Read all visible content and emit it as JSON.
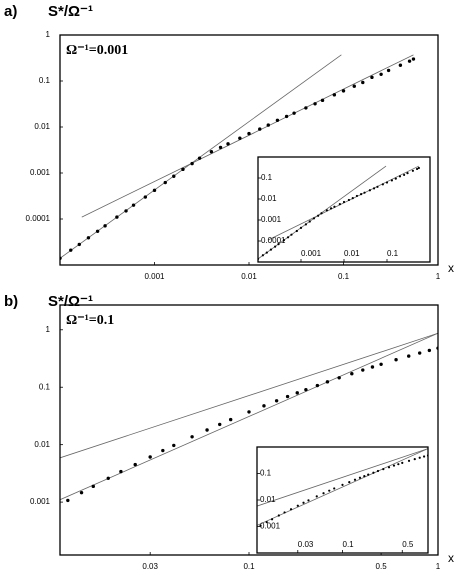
{
  "chart_data": [
    {
      "type": "scatter",
      "label": "a)",
      "ylabel": "S*/Ω⁻¹",
      "annotation": "Ω⁻¹=0.001",
      "xlabel": "x",
      "log_x": true,
      "log_y": true,
      "xlim": [
        0.0001,
        1
      ],
      "ylim": [
        1e-05,
        1
      ],
      "xticks": [
        0.001,
        0.01,
        0.1,
        1
      ],
      "yticks": [
        0.0001,
        0.001,
        0.01,
        0.1,
        1
      ],
      "series": [
        {
          "color": "#000000",
          "x": [
            0.0001,
            0.00013,
            0.00016,
            0.0002,
            0.00025,
            0.0003,
            0.0004,
            0.0005,
            0.0006,
            0.0008,
            0.001,
            0.0013,
            0.0016,
            0.002,
            0.0025,
            0.003,
            0.004,
            0.005,
            0.006,
            0.008,
            0.01,
            0.013,
            0.016,
            0.02,
            0.025,
            0.03,
            0.04,
            0.05,
            0.06,
            0.08,
            0.1,
            0.13,
            0.16,
            0.2,
            0.25,
            0.3,
            0.4,
            0.5,
            0.55
          ],
          "values": [
            1.4e-05,
            2.1e-05,
            2.8e-05,
            3.9e-05,
            5.4e-05,
            7.1e-05,
            0.00011,
            0.00015,
            0.0002,
            0.0003,
            0.00042,
            0.00062,
            0.00085,
            0.0012,
            0.0016,
            0.0021,
            0.0029,
            0.0036,
            0.0043,
            0.0057,
            0.0072,
            0.009,
            0.011,
            0.014,
            0.017,
            0.02,
            0.026,
            0.032,
            0.038,
            0.05,
            0.061,
            0.077,
            0.093,
            0.12,
            0.14,
            0.17,
            0.22,
            0.27,
            0.3
          ]
        }
      ],
      "lines": [
        {
          "color": "#666666",
          "x": [
            0.0001,
            0.095
          ],
          "values": [
            1.4e-05,
            0.37
          ]
        },
        {
          "color": "#666666",
          "x": [
            0.00017,
            0.55
          ],
          "values": [
            0.00011,
            0.37
          ]
        }
      ],
      "inset": {
        "xlim": [
          0.0001,
          1
        ],
        "ylim": [
          1e-05,
          1
        ],
        "xticks": [
          0.001,
          0.01,
          0.1
        ],
        "yticks": [
          0.0001,
          0.001,
          0.01,
          0.1
        ]
      }
    },
    {
      "type": "scatter",
      "label": "b)",
      "ylabel": "S*/Ω⁻¹",
      "annotation": "Ω⁻¹=0.1",
      "xlabel": "x",
      "log_x": true,
      "log_y": true,
      "xlim": [
        0.01,
        1
      ],
      "ylim": [
        0.00012,
        2.7
      ],
      "xticks": [
        0.03,
        0.1,
        0.5,
        1
      ],
      "yticks": [
        0.001,
        0.01,
        0.1,
        1
      ],
      "series": [
        {
          "color": "#000000",
          "x": [
            0.011,
            0.013,
            0.015,
            0.018,
            0.021,
            0.025,
            0.03,
            0.035,
            0.04,
            0.05,
            0.06,
            0.07,
            0.08,
            0.1,
            0.12,
            0.14,
            0.16,
            0.18,
            0.2,
            0.23,
            0.26,
            0.3,
            0.35,
            0.4,
            0.45,
            0.5,
            0.6,
            0.7,
            0.8,
            0.9,
            1
          ],
          "values": [
            0.00107,
            0.00146,
            0.00188,
            0.0026,
            0.0034,
            0.0045,
            0.0061,
            0.0079,
            0.0097,
            0.0137,
            0.018,
            0.0225,
            0.0273,
            0.0372,
            0.0474,
            0.058,
            0.0689,
            0.0798,
            0.0906,
            0.107,
            0.124,
            0.146,
            0.172,
            0.199,
            0.225,
            0.251,
            0.301,
            0.348,
            0.394,
            0.437,
            0.479
          ]
        }
      ],
      "lines": [
        {
          "color": "#666666",
          "x": [
            0.01,
            1
          ],
          "values": [
            0.0059,
            0.87
          ]
        },
        {
          "color": "#666666",
          "x": [
            0.01,
            1
          ],
          "values": [
            0.0011,
            0.87
          ]
        }
      ],
      "inset": {
        "xlim": [
          0.01,
          1
        ],
        "ylim": [
          0.0001,
          1
        ],
        "xticks": [
          0.03,
          0.1,
          0.5
        ],
        "yticks": [
          0.001,
          0.01,
          0.1
        ]
      }
    }
  ]
}
